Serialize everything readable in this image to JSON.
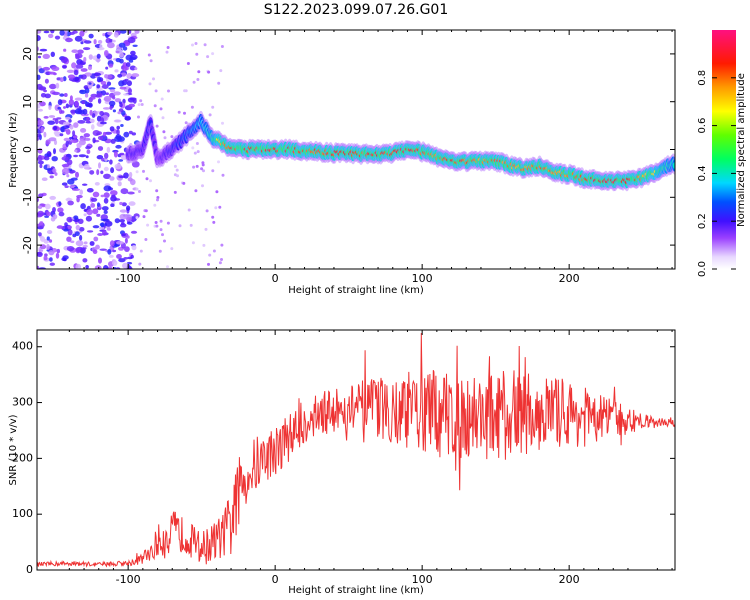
{
  "title": "S122.2023.099.07.26.G01",
  "colors": {
    "snr_line": "#ee3333",
    "track_mid": "#00e0d0",
    "track_hot": "#ff2a1a"
  },
  "chart_data": [
    {
      "type": "heatmap",
      "xlabel": "Height of straight line (km)",
      "ylabel": "Frequency (Hz)",
      "xlim": [
        -162,
        272
      ],
      "ylim": [
        -25,
        25
      ],
      "xticks": [
        -100,
        0,
        100,
        200
      ],
      "yticks": [
        -20,
        -10,
        0,
        10,
        20
      ],
      "track": {
        "x": [
          -100,
          -90,
          -85,
          -80,
          -75,
          -70,
          -65,
          -60,
          -55,
          -50,
          -45,
          -40,
          -35,
          -30,
          -20,
          -10,
          0,
          10,
          20,
          30,
          40,
          50,
          60,
          70,
          80,
          90,
          100,
          110,
          120,
          130,
          140,
          150,
          160,
          170,
          180,
          190,
          200,
          210,
          220,
          230,
          240,
          250,
          260,
          270
        ],
        "y": [
          -1,
          0,
          6,
          -2,
          -1,
          0,
          1.5,
          3,
          4.5,
          6,
          3,
          2,
          1,
          0,
          0,
          0,
          0,
          0,
          -0.3,
          -0.5,
          -0.7,
          -0.8,
          -1,
          -1,
          -0.8,
          0,
          -0.5,
          -1.5,
          -2.5,
          -2.5,
          -2.5,
          -2.5,
          -3.3,
          -4,
          -3.5,
          -4.8,
          -5.2,
          -6,
          -6.5,
          -6.5,
          -6.5,
          -5.8,
          -4.5,
          -3
        ],
        "amp": [
          0.3,
          0.3,
          0.35,
          0.25,
          0.3,
          0.35,
          0.4,
          0.45,
          0.5,
          0.55,
          0.6,
          0.7,
          0.8,
          0.85,
          0.9,
          0.9,
          0.88,
          0.92,
          0.88,
          0.85,
          0.9,
          0.9,
          0.85,
          0.92,
          0.88,
          0.95,
          0.85,
          0.8,
          0.9,
          0.85,
          0.8,
          0.85,
          0.8,
          0.8,
          0.85,
          0.8,
          0.8,
          0.85,
          0.95,
          0.92,
          0.9,
          0.8,
          0.7,
          0.6
        ]
      }
    },
    {
      "type": "line",
      "xlabel": "Height of straight line (km)",
      "ylabel": "SNR (10 * v/v)",
      "xlim": [
        -162,
        272
      ],
      "ylim": [
        0,
        430
      ],
      "xticks": [
        -100,
        0,
        100,
        200
      ],
      "yticks": [
        0,
        100,
        200,
        300,
        400
      ],
      "x": [
        -162,
        -140,
        -120,
        -100,
        -90,
        -80,
        -70,
        -60,
        -50,
        -40,
        -30,
        -25,
        -20,
        -10,
        0,
        10,
        20,
        30,
        40,
        50,
        60,
        70,
        80,
        90,
        100,
        110,
        120,
        130,
        140,
        150,
        160,
        170,
        180,
        190,
        200,
        210,
        220,
        230,
        240,
        250,
        260,
        272
      ],
      "y": [
        10,
        12,
        10,
        12,
        20,
        50,
        70,
        60,
        40,
        50,
        80,
        140,
        170,
        195,
        215,
        240,
        265,
        280,
        285,
        290,
        290,
        290,
        288,
        285,
        282,
        280,
        280,
        280,
        278,
        275,
        278,
        282,
        285,
        282,
        280,
        275,
        272,
        270,
        268,
        265,
        265,
        265
      ],
      "spread": [
        4,
        4,
        4,
        5,
        10,
        30,
        40,
        30,
        30,
        40,
        60,
        60,
        60,
        50,
        45,
        45,
        40,
        40,
        40,
        45,
        50,
        55,
        60,
        70,
        75,
        80,
        80,
        80,
        80,
        80,
        80,
        75,
        70,
        65,
        60,
        55,
        45,
        35,
        25,
        15,
        10,
        8
      ]
    }
  ],
  "colorbar": {
    "label": "Normalized spectral amplitude",
    "ticks": [
      0.0,
      0.2,
      0.4,
      0.6,
      0.8
    ]
  }
}
